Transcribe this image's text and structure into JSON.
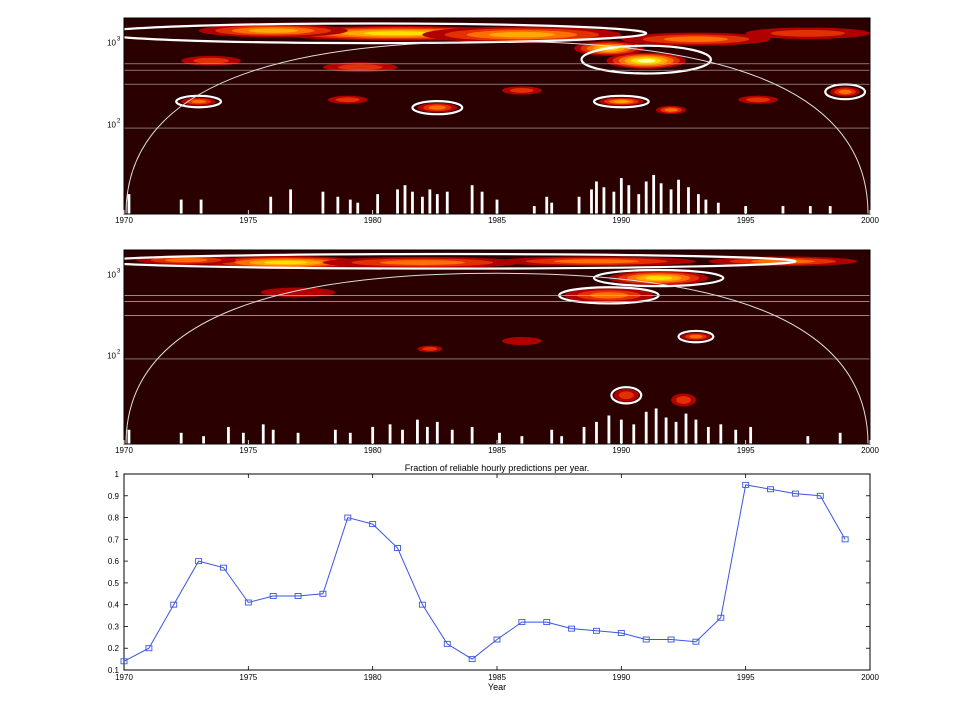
{
  "colors": {
    "background_dark": "#2b0000",
    "spectrum_scale": [
      "#b00000",
      "#e23000",
      "#ff7000",
      "#ffaa00",
      "#ffe000",
      "#ffff99"
    ],
    "significance_contour": "#ffffff",
    "line_series": "#3a55e0"
  },
  "chart_data": [
    {
      "type": "heatmap",
      "title": "",
      "xlabel": "",
      "ylabel": "",
      "x_ticks": [
        "1970",
        "1975",
        "1980",
        "1985",
        "1990",
        "1995",
        "2000"
      ],
      "y_ticks": [
        "10",
        "10"
      ],
      "y_tick_exponents": [
        "3",
        "2"
      ],
      "y_scale": "log",
      "xlim": [
        1970,
        2000
      ],
      "ylim": [
        8,
        2000
      ],
      "grid": false,
      "reference_lines": [
        550,
        460,
        310,
        90
      ],
      "hotspots": [
        {
          "x": 1981.0,
          "y": 1300,
          "level": 5,
          "sx": 5.0,
          "sy": 0.09
        },
        {
          "x": 1976.0,
          "y": 1400,
          "level": 4,
          "sx": 3.0,
          "sy": 0.08
        },
        {
          "x": 1986.0,
          "y": 1250,
          "level": 4,
          "sx": 4.0,
          "sy": 0.1
        },
        {
          "x": 1991.0,
          "y": 600,
          "level": 6,
          "sx": 1.6,
          "sy": 0.1
        },
        {
          "x": 1989.5,
          "y": 850,
          "level": 5,
          "sx": 1.4,
          "sy": 0.09
        },
        {
          "x": 1993.0,
          "y": 1100,
          "level": 3,
          "sx": 3.0,
          "sy": 0.08
        },
        {
          "x": 1997.5,
          "y": 1300,
          "level": 2,
          "sx": 2.5,
          "sy": 0.07
        },
        {
          "x": 1973.5,
          "y": 600,
          "level": 2,
          "sx": 1.2,
          "sy": 0.06
        },
        {
          "x": 1979.5,
          "y": 500,
          "level": 2,
          "sx": 1.5,
          "sy": 0.06
        },
        {
          "x": 1973.0,
          "y": 190,
          "level": 3,
          "sx": 0.7,
          "sy": 0.05
        },
        {
          "x": 1979.0,
          "y": 200,
          "level": 2,
          "sx": 0.8,
          "sy": 0.05
        },
        {
          "x": 1982.6,
          "y": 160,
          "level": 3,
          "sx": 0.8,
          "sy": 0.06
        },
        {
          "x": 1986.0,
          "y": 260,
          "level": 2,
          "sx": 0.8,
          "sy": 0.05
        },
        {
          "x": 1990.0,
          "y": 190,
          "level": 4,
          "sx": 0.9,
          "sy": 0.05
        },
        {
          "x": 1992.0,
          "y": 150,
          "level": 3,
          "sx": 0.6,
          "sy": 0.05
        },
        {
          "x": 1995.5,
          "y": 200,
          "level": 2,
          "sx": 0.8,
          "sy": 0.05
        },
        {
          "x": 1999.0,
          "y": 250,
          "level": 3,
          "sx": 0.6,
          "sy": 0.06
        }
      ],
      "contours": [
        {
          "x": 1980.0,
          "y": 1300,
          "sx": 11.0,
          "sy": 0.12
        },
        {
          "x": 1991.0,
          "y": 620,
          "sx": 2.6,
          "sy": 0.17
        },
        {
          "x": 1973.0,
          "y": 190,
          "sx": 0.9,
          "sy": 0.07
        },
        {
          "x": 1982.6,
          "y": 160,
          "sx": 1.0,
          "sy": 0.08
        },
        {
          "x": 1990.0,
          "y": 190,
          "sx": 1.1,
          "sy": 0.07
        },
        {
          "x": 1999.0,
          "y": 250,
          "sx": 0.8,
          "sy": 0.09
        }
      ],
      "bars": [
        {
          "x": 1970.2,
          "top": 14
        },
        {
          "x": 1972.3,
          "top": 12
        },
        {
          "x": 1973.1,
          "top": 12
        },
        {
          "x": 1975.9,
          "top": 13
        },
        {
          "x": 1976.7,
          "top": 16
        },
        {
          "x": 1978.0,
          "top": 15
        },
        {
          "x": 1978.6,
          "top": 13
        },
        {
          "x": 1979.1,
          "top": 12
        },
        {
          "x": 1979.4,
          "top": 11
        },
        {
          "x": 1980.2,
          "top": 14
        },
        {
          "x": 1981.0,
          "top": 16
        },
        {
          "x": 1981.3,
          "top": 18
        },
        {
          "x": 1981.6,
          "top": 15
        },
        {
          "x": 1982.0,
          "top": 13
        },
        {
          "x": 1982.3,
          "top": 16
        },
        {
          "x": 1982.6,
          "top": 14
        },
        {
          "x": 1983.0,
          "top": 15
        },
        {
          "x": 1984.0,
          "top": 18
        },
        {
          "x": 1984.4,
          "top": 15
        },
        {
          "x": 1985.0,
          "top": 12
        },
        {
          "x": 1986.5,
          "top": 10
        },
        {
          "x": 1987.0,
          "top": 13
        },
        {
          "x": 1987.2,
          "top": 11
        },
        {
          "x": 1988.3,
          "top": 13
        },
        {
          "x": 1988.8,
          "top": 16
        },
        {
          "x": 1989.0,
          "top": 20
        },
        {
          "x": 1989.3,
          "top": 17
        },
        {
          "x": 1989.7,
          "top": 15
        },
        {
          "x": 1990.0,
          "top": 22
        },
        {
          "x": 1990.3,
          "top": 18
        },
        {
          "x": 1990.7,
          "top": 14
        },
        {
          "x": 1991.0,
          "top": 20
        },
        {
          "x": 1991.3,
          "top": 24
        },
        {
          "x": 1991.6,
          "top": 19
        },
        {
          "x": 1992.0,
          "top": 16
        },
        {
          "x": 1992.3,
          "top": 21
        },
        {
          "x": 1992.7,
          "top": 17
        },
        {
          "x": 1993.1,
          "top": 14
        },
        {
          "x": 1993.4,
          "top": 12
        },
        {
          "x": 1993.9,
          "top": 11
        },
        {
          "x": 1995.0,
          "top": 10
        },
        {
          "x": 1996.5,
          "top": 10
        },
        {
          "x": 1997.6,
          "top": 10
        },
        {
          "x": 1998.4,
          "top": 10
        }
      ]
    },
    {
      "type": "heatmap",
      "title": "",
      "xlabel": "",
      "ylabel": "",
      "x_ticks": [
        "1970",
        "1975",
        "1980",
        "1985",
        "1990",
        "1995",
        "2000"
      ],
      "y_ticks": [
        "10",
        "10"
      ],
      "y_tick_exponents": [
        "3",
        "2"
      ],
      "y_scale": "log",
      "xlim": [
        1970,
        2000
      ],
      "ylim": [
        8,
        2000
      ],
      "grid": false,
      "reference_lines": [
        550,
        460,
        310,
        90
      ],
      "hotspots": [
        {
          "x": 1976.5,
          "y": 1400,
          "level": 5,
          "sx": 3.2,
          "sy": 0.08
        },
        {
          "x": 1972.5,
          "y": 1500,
          "level": 3,
          "sx": 2.0,
          "sy": 0.06
        },
        {
          "x": 1982.0,
          "y": 1400,
          "level": 3,
          "sx": 4.0,
          "sy": 0.07
        },
        {
          "x": 1989.0,
          "y": 1450,
          "level": 3,
          "sx": 4.0,
          "sy": 0.06
        },
        {
          "x": 1996.5,
          "y": 1450,
          "level": 3,
          "sx": 3.0,
          "sy": 0.06
        },
        {
          "x": 1991.5,
          "y": 900,
          "level": 5,
          "sx": 2.0,
          "sy": 0.09
        },
        {
          "x": 1989.5,
          "y": 550,
          "level": 3,
          "sx": 1.8,
          "sy": 0.09
        },
        {
          "x": 1977.0,
          "y": 600,
          "level": 1,
          "sx": 1.5,
          "sy": 0.06
        },
        {
          "x": 1993.0,
          "y": 170,
          "level": 3,
          "sx": 0.6,
          "sy": 0.05
        },
        {
          "x": 1982.3,
          "y": 120,
          "level": 2,
          "sx": 0.5,
          "sy": 0.04
        },
        {
          "x": 1990.2,
          "y": 32,
          "level": 2,
          "sx": 0.5,
          "sy": 0.08
        },
        {
          "x": 1992.5,
          "y": 28,
          "level": 2,
          "sx": 0.5,
          "sy": 0.08
        },
        {
          "x": 1986.0,
          "y": 150,
          "level": 1,
          "sx": 0.8,
          "sy": 0.05
        }
      ],
      "contours": [
        {
          "x": 1983.0,
          "y": 1450,
          "sx": 14.0,
          "sy": 0.09
        },
        {
          "x": 1991.5,
          "y": 900,
          "sx": 2.6,
          "sy": 0.1
        },
        {
          "x": 1989.5,
          "y": 550,
          "sx": 2.0,
          "sy": 0.1
        },
        {
          "x": 1993.0,
          "y": 170,
          "sx": 0.7,
          "sy": 0.07
        },
        {
          "x": 1990.2,
          "y": 32,
          "sx": 0.6,
          "sy": 0.1
        }
      ],
      "bars": [
        {
          "x": 1970.2,
          "top": 12
        },
        {
          "x": 1972.3,
          "top": 11
        },
        {
          "x": 1973.2,
          "top": 10
        },
        {
          "x": 1974.2,
          "top": 13
        },
        {
          "x": 1974.8,
          "top": 11
        },
        {
          "x": 1975.6,
          "top": 14
        },
        {
          "x": 1976.0,
          "top": 12
        },
        {
          "x": 1977.0,
          "top": 11
        },
        {
          "x": 1978.5,
          "top": 12
        },
        {
          "x": 1979.1,
          "top": 11
        },
        {
          "x": 1980.0,
          "top": 13
        },
        {
          "x": 1980.7,
          "top": 14
        },
        {
          "x": 1981.2,
          "top": 12
        },
        {
          "x": 1981.8,
          "top": 16
        },
        {
          "x": 1982.2,
          "top": 13
        },
        {
          "x": 1982.6,
          "top": 15
        },
        {
          "x": 1983.2,
          "top": 12
        },
        {
          "x": 1984.0,
          "top": 13
        },
        {
          "x": 1985.1,
          "top": 11
        },
        {
          "x": 1986.0,
          "top": 10
        },
        {
          "x": 1987.2,
          "top": 12
        },
        {
          "x": 1987.6,
          "top": 10
        },
        {
          "x": 1988.5,
          "top": 13
        },
        {
          "x": 1989.0,
          "top": 15
        },
        {
          "x": 1989.5,
          "top": 18
        },
        {
          "x": 1990.0,
          "top": 16
        },
        {
          "x": 1990.5,
          "top": 14
        },
        {
          "x": 1991.0,
          "top": 20
        },
        {
          "x": 1991.4,
          "top": 22
        },
        {
          "x": 1991.8,
          "top": 17
        },
        {
          "x": 1992.2,
          "top": 15
        },
        {
          "x": 1992.6,
          "top": 19
        },
        {
          "x": 1993.0,
          "top": 16
        },
        {
          "x": 1993.5,
          "top": 13
        },
        {
          "x": 1994.0,
          "top": 14
        },
        {
          "x": 1994.6,
          "top": 12
        },
        {
          "x": 1995.2,
          "top": 13
        },
        {
          "x": 1997.5,
          "top": 10
        },
        {
          "x": 1998.8,
          "top": 11
        }
      ]
    },
    {
      "type": "line",
      "title": "Fraction of reliable hourly predictions per year.",
      "xlabel": "Year",
      "ylabel": "",
      "x": [
        1970,
        1971,
        1972,
        1973,
        1974,
        1975,
        1976,
        1977,
        1978,
        1979,
        1980,
        1981,
        1982,
        1983,
        1984,
        1985,
        1986,
        1987,
        1988,
        1989,
        1990,
        1991,
        1992,
        1993,
        1994,
        1995,
        1996,
        1997,
        1998,
        1999
      ],
      "series": [
        {
          "values": [
            0.14,
            0.2,
            0.4,
            0.6,
            0.57,
            0.41,
            0.44,
            0.44,
            0.45,
            0.8,
            0.77,
            0.66,
            0.4,
            0.22,
            0.15,
            0.24,
            0.32,
            0.32,
            0.29,
            0.28,
            0.27,
            0.24,
            0.24,
            0.23,
            0.34,
            0.95,
            0.93,
            0.91,
            0.9,
            0.7
          ]
        }
      ],
      "xlim": [
        1970,
        2000
      ],
      "ylim": [
        0.1,
        1.0
      ],
      "x_ticks": [
        "1970",
        "1975",
        "1980",
        "1985",
        "1990",
        "1995",
        "2000"
      ],
      "y_ticks": [
        "0.1",
        "0.2",
        "0.3",
        "0.4",
        "0.5",
        "0.6",
        "0.7",
        "0.8",
        "0.9",
        "1"
      ],
      "grid": false,
      "marker": "square"
    }
  ],
  "footer": {
    "page_marker": ""
  }
}
